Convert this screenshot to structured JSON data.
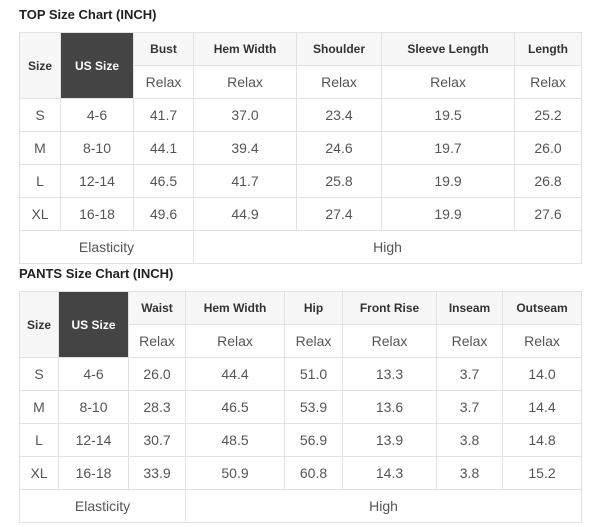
{
  "tables": [
    {
      "title": "TOP Size Chart (INCH)",
      "size_label": "Size",
      "us_label": "US Size",
      "columns": [
        "Bust",
        "Hem Width",
        "Shoulder",
        "Sleeve Length",
        "Length"
      ],
      "fit": [
        "Relax",
        "Relax",
        "Relax",
        "Relax",
        "Relax"
      ],
      "rows": [
        {
          "size": "S",
          "us": "4-6",
          "values": [
            "41.7",
            "37.0",
            "23.4",
            "19.5",
            "25.2"
          ]
        },
        {
          "size": "M",
          "us": "8-10",
          "values": [
            "44.1",
            "39.4",
            "24.6",
            "19.7",
            "26.0"
          ]
        },
        {
          "size": "L",
          "us": "12-14",
          "values": [
            "46.5",
            "41.7",
            "25.8",
            "19.9",
            "26.8"
          ]
        },
        {
          "size": "XL",
          "us": "16-18",
          "values": [
            "49.6",
            "44.9",
            "27.4",
            "19.9",
            "27.6"
          ]
        }
      ],
      "elasticity_label": "Elasticity",
      "elasticity_value": "High"
    },
    {
      "title": "PANTS Size Chart (INCH)",
      "size_label": "Size",
      "us_label": "US Size",
      "columns": [
        "Waist",
        "Hem Width",
        "Hip",
        "Front Rise",
        "Inseam",
        "Outseam"
      ],
      "fit": [
        "Relax",
        "Relax",
        "Relax",
        "Relax",
        "Relax",
        "Relax"
      ],
      "rows": [
        {
          "size": "S",
          "us": "4-6",
          "values": [
            "26.0",
            "44.4",
            "51.0",
            "13.3",
            "3.7",
            "14.0"
          ]
        },
        {
          "size": "M",
          "us": "8-10",
          "values": [
            "28.3",
            "46.5",
            "53.9",
            "13.6",
            "3.7",
            "14.4"
          ]
        },
        {
          "size": "L",
          "us": "12-14",
          "values": [
            "30.7",
            "48.5",
            "56.9",
            "13.9",
            "3.8",
            "14.8"
          ]
        },
        {
          "size": "XL",
          "us": "16-18",
          "values": [
            "33.9",
            "50.9",
            "60.8",
            "14.3",
            "3.8",
            "15.2"
          ]
        }
      ],
      "elasticity_label": "Elasticity",
      "elasticity_value": "High"
    }
  ]
}
